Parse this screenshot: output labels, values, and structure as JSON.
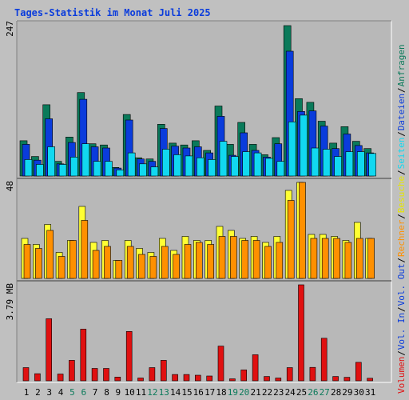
{
  "chart_data": {
    "type": "bar",
    "title": "Tages-Statistik im Monat Juli 2025",
    "categories": [
      "1",
      "2",
      "3",
      "4",
      "5",
      "6",
      "7",
      "8",
      "9",
      "10",
      "11",
      "12",
      "13",
      "14",
      "15",
      "16",
      "17",
      "18",
      "19",
      "20",
      "21",
      "22",
      "23",
      "24",
      "25",
      "26",
      "27",
      "28",
      "29",
      "30",
      "31"
    ],
    "weekend_categories": [
      "5",
      "6",
      "12",
      "13",
      "19",
      "20",
      "26",
      "27"
    ],
    "panels": [
      {
        "name": "requests",
        "max_label": "247",
        "ymax": 247,
        "series": [
          {
            "name": "Anfragen",
            "color": "#0a7a5a",
            "values": [
              58,
              32,
              117,
              24,
              64,
              137,
              53,
              51,
              14,
              101,
              30,
              28,
              85,
              54,
              51,
              58,
              42,
              115,
              52,
              88,
              52,
              35,
              63,
              247,
              127,
              121,
              90,
              54,
              81,
              57,
              45
            ]
          },
          {
            "name": "Dateien",
            "color": "#0a3cdc",
            "values": [
              52,
              26,
              94,
              20,
              55,
              126,
              48,
              46,
              13,
              92,
              28,
              24,
              78,
              49,
              46,
              48,
              38,
              98,
              34,
              71,
              42,
              31,
              53,
              205,
              106,
              107,
              82,
              45,
              69,
              50,
              38
            ]
          },
          {
            "name": "Seiten",
            "color": "#11d8f0",
            "values": [
              27,
              19,
              48,
              19,
              31,
              53,
              24,
              24,
              10,
              38,
              20,
              15,
              44,
              35,
              33,
              30,
              27,
              57,
              32,
              40,
              38,
              29,
              24,
              89,
              100,
              46,
              44,
              32,
              40,
              40,
              37
            ]
          }
        ]
      },
      {
        "name": "visits",
        "max_label": "48",
        "ymax": 48,
        "series": [
          {
            "name": "Besuche",
            "color": "#ffff33",
            "values": [
              20,
              17,
              27,
              13,
              19,
              36,
              18,
              19,
              9,
              19,
              15,
              13,
              20,
              14,
              21,
              19,
              19,
              26,
              24,
              20,
              21,
              18,
              21,
              44,
              48,
              22,
              22,
              21,
              19,
              28,
              20
            ]
          },
          {
            "name": "Rechner",
            "color": "#ff9000",
            "values": [
              17,
              15,
              24,
              11,
              19,
              29,
              14,
              16,
              9,
              16,
              12,
              11,
              16,
              12,
              17,
              18,
              17,
              21,
              21,
              19,
              19,
              16,
              18,
              39,
              48,
              20,
              20,
              20,
              18,
              20,
              20
            ]
          }
        ]
      },
      {
        "name": "volume",
        "max_label": "3.79 MB",
        "ymax": 3.79,
        "series": [
          {
            "name": "Volumen",
            "color": "#e01010",
            "values": [
              0.52,
              0.28,
              2.45,
              0.27,
              0.81,
              2.04,
              0.49,
              0.49,
              0.15,
              1.95,
              0.11,
              0.52,
              0.81,
              0.25,
              0.25,
              0.22,
              0.19,
              1.37,
              0.08,
              0.43,
              1.03,
              0.17,
              0.11,
              0.52,
              3.79,
              0.53,
              1.68,
              0.17,
              0.14,
              0.73,
              0.1
            ]
          }
        ]
      }
    ],
    "legend_right": [
      {
        "text": "Anfragen",
        "color": "#0a7a5a"
      },
      {
        "text": "Dateien",
        "color": "#0a3cdc"
      },
      {
        "text": "Seiten",
        "color": "#11d8f0"
      },
      {
        "text": "Besuche",
        "color": "#e6e600"
      },
      {
        "text": "Rechner",
        "color": "#ff9000"
      },
      {
        "text": "Vol. Out",
        "color": "#0a3cdc"
      },
      {
        "text": "Vol. In",
        "color": "#0a3cdc"
      },
      {
        "text": "Volumen",
        "color": "#e01010"
      }
    ],
    "colors": {
      "background": "#c0c0c0",
      "plot_bg": "#b8b8b8",
      "title": "#0a3cdc",
      "weekend_label": "#0a7a5a",
      "weekday_label": "#000000",
      "separator": "#7a7a7a"
    },
    "grid": true
  }
}
